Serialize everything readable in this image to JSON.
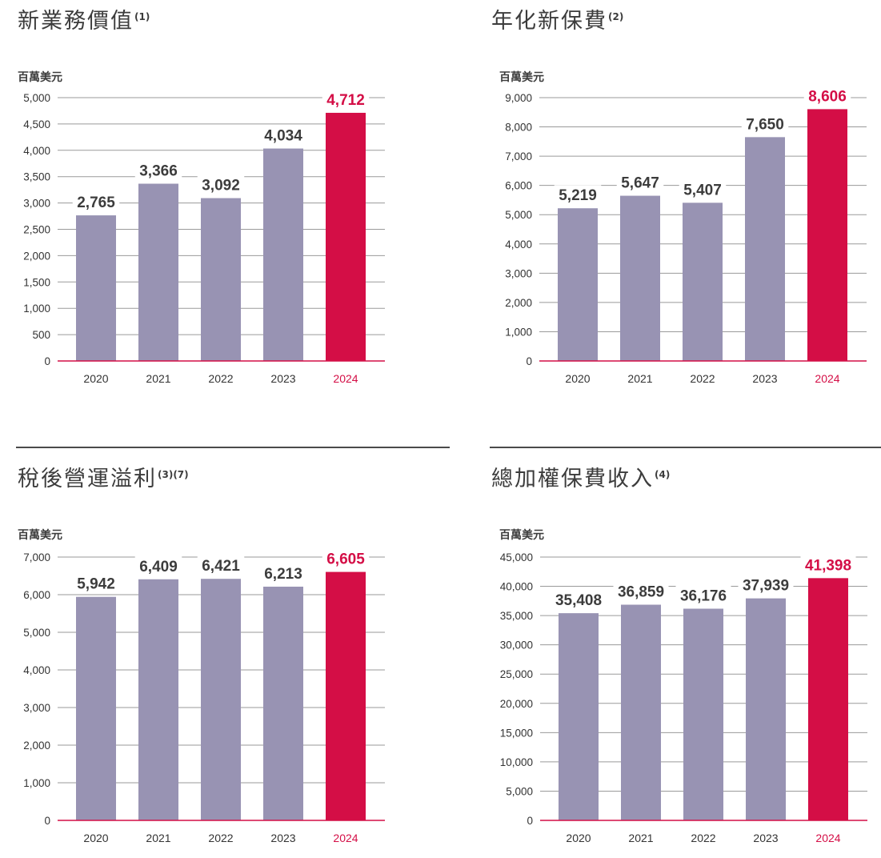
{
  "colors": {
    "bar": "#9893b3",
    "highlight": "#d40e46",
    "text": "#3c3c3c",
    "grid": "#9a9a9a",
    "tick": "#333333"
  },
  "chart_data": [
    {
      "type": "bar",
      "title": "新業務價值",
      "note": "(1)",
      "unit": "百萬美元",
      "categories": [
        "2020",
        "2021",
        "2022",
        "2023",
        "2024"
      ],
      "values": [
        2765,
        3366,
        3092,
        4034,
        4712
      ],
      "value_labels": [
        "2,765",
        "3,366",
        "3,092",
        "4,034",
        "4,712"
      ],
      "highlight_index": 4,
      "ylim": [
        0,
        5000
      ],
      "yticks": [
        0,
        500,
        1000,
        1500,
        2000,
        2500,
        3000,
        3500,
        4000,
        4500,
        5000
      ],
      "ytick_labels": [
        "0",
        "500",
        "1,000",
        "1,500",
        "2,000",
        "2,500",
        "3,000",
        "3,500",
        "4,000",
        "4,500",
        "5,000"
      ],
      "grid": true
    },
    {
      "type": "bar",
      "title": "年化新保費",
      "note": "(2)",
      "unit": "百萬美元",
      "categories": [
        "2020",
        "2021",
        "2022",
        "2023",
        "2024"
      ],
      "values": [
        5219,
        5647,
        5407,
        7650,
        8606
      ],
      "value_labels": [
        "5,219",
        "5,647",
        "5,407",
        "7,650",
        "8,606"
      ],
      "highlight_index": 4,
      "ylim": [
        0,
        9000
      ],
      "yticks": [
        0,
        1000,
        2000,
        3000,
        4000,
        5000,
        6000,
        7000,
        8000,
        9000
      ],
      "ytick_labels": [
        "0",
        "1,000",
        "2,000",
        "3,000",
        "4,000",
        "5,000",
        "6,000",
        "7,000",
        "8,000",
        "9,000"
      ],
      "grid": true
    },
    {
      "type": "bar",
      "title": "稅後營運溢利",
      "note": "(3)(7)",
      "unit": "百萬美元",
      "categories": [
        "2020",
        "2021",
        "2022",
        "2023",
        "2024"
      ],
      "values": [
        5942,
        6409,
        6421,
        6213,
        6605
      ],
      "value_labels": [
        "5,942",
        "6,409",
        "6,421",
        "6,213",
        "6,605"
      ],
      "highlight_index": 4,
      "ylim": [
        0,
        7000
      ],
      "yticks": [
        0,
        1000,
        2000,
        3000,
        4000,
        5000,
        6000,
        7000
      ],
      "ytick_labels": [
        "0",
        "1,000",
        "2,000",
        "3,000",
        "4,000",
        "5,000",
        "6,000",
        "7,000"
      ],
      "grid": true
    },
    {
      "type": "bar",
      "title": "總加權保費收入",
      "note": "(4)",
      "unit": "百萬美元",
      "categories": [
        "2020",
        "2021",
        "2022",
        "2023",
        "2024"
      ],
      "values": [
        35408,
        36859,
        36176,
        37939,
        41398
      ],
      "value_labels": [
        "35,408",
        "36,859",
        "36,176",
        "37,939",
        "41,398"
      ],
      "highlight_index": 4,
      "ylim": [
        0,
        45000
      ],
      "yticks": [
        0,
        5000,
        10000,
        15000,
        20000,
        25000,
        30000,
        35000,
        40000,
        45000
      ],
      "ytick_labels": [
        "0",
        "5,000",
        "10,000",
        "15,000",
        "20,000",
        "25,000",
        "30,000",
        "35,000",
        "40,000",
        "45,000"
      ],
      "grid": true
    }
  ]
}
